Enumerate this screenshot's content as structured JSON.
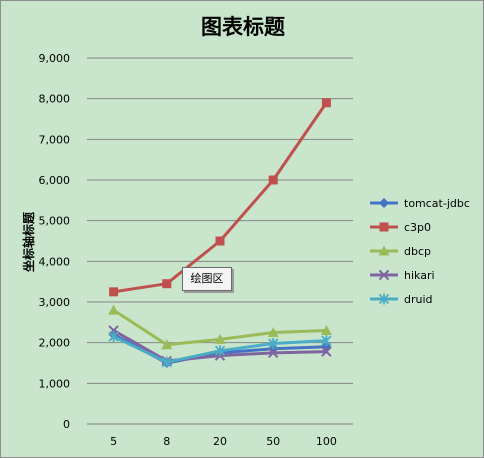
{
  "chart_data": {
    "type": "line",
    "title": "图表标题",
    "ylabel": "坐标轴标题",
    "xlabel": "",
    "categories": [
      "5",
      "8",
      "20",
      "50",
      "100"
    ],
    "ylim": [
      0,
      9000
    ],
    "yticks": [
      "0",
      "1,000",
      "2,000",
      "3,000",
      "4,000",
      "5,000",
      "6,000",
      "7,000",
      "8,000",
      "9,000"
    ],
    "grid": true,
    "legend_position": "right",
    "series": [
      {
        "name": "tomcat-jdbc",
        "color": "#4472c4",
        "marker": "diamond",
        "values": [
          2200,
          1500,
          1750,
          1850,
          1900
        ]
      },
      {
        "name": "c3p0",
        "color": "#c0504d",
        "marker": "square",
        "values": [
          3250,
          3450,
          4500,
          6000,
          7900
        ]
      },
      {
        "name": "dbcp",
        "color": "#9bbb59",
        "marker": "triangle",
        "values": [
          2800,
          1950,
          2080,
          2250,
          2300
        ]
      },
      {
        "name": "hikari",
        "color": "#8064a2",
        "marker": "x",
        "values": [
          2300,
          1550,
          1680,
          1750,
          1780
        ]
      },
      {
        "name": "druid",
        "color": "#4bacc6",
        "marker": "star",
        "values": [
          2150,
          1520,
          1800,
          1980,
          2050
        ]
      }
    ]
  },
  "plot_area_tooltip": "绘图区"
}
